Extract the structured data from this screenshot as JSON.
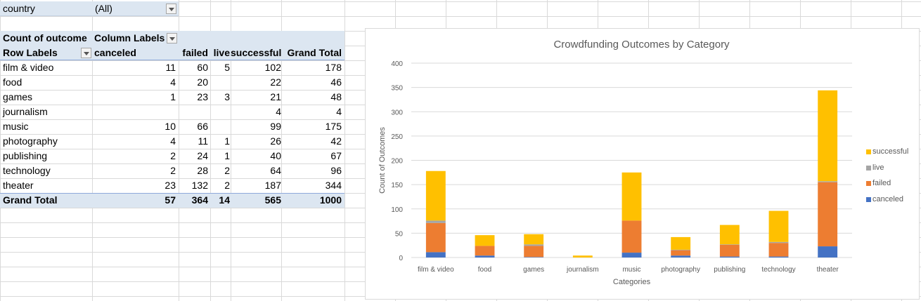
{
  "filter": {
    "label": "country",
    "value": "(All)"
  },
  "pivot": {
    "measure_label": "Count of outcome",
    "column_labels": "Column Labels",
    "row_labels": "Row Labels",
    "columns": [
      "canceled",
      "failed",
      "live",
      "successful",
      "Grand Total"
    ],
    "rows": [
      {
        "label": "film & video",
        "canceled": "11",
        "failed": "60",
        "live": "5",
        "successful": "102",
        "total": "178"
      },
      {
        "label": "food",
        "canceled": "4",
        "failed": "20",
        "live": "",
        "successful": "22",
        "total": "46"
      },
      {
        "label": "games",
        "canceled": "1",
        "failed": "23",
        "live": "3",
        "successful": "21",
        "total": "48"
      },
      {
        "label": "journalism",
        "canceled": "",
        "failed": "",
        "live": "",
        "successful": "4",
        "total": "4"
      },
      {
        "label": "music",
        "canceled": "10",
        "failed": "66",
        "live": "",
        "successful": "99",
        "total": "175"
      },
      {
        "label": "photography",
        "canceled": "4",
        "failed": "11",
        "live": "1",
        "successful": "26",
        "total": "42"
      },
      {
        "label": "publishing",
        "canceled": "2",
        "failed": "24",
        "live": "1",
        "successful": "40",
        "total": "67"
      },
      {
        "label": "technology",
        "canceled": "2",
        "failed": "28",
        "live": "2",
        "successful": "64",
        "total": "96"
      },
      {
        "label": "theater",
        "canceled": "23",
        "failed": "132",
        "live": "2",
        "successful": "187",
        "total": "344"
      }
    ],
    "grand_total": {
      "label": "Grand Total",
      "canceled": "57",
      "failed": "364",
      "live": "14",
      "successful": "565",
      "total": "1000"
    }
  },
  "chart_data": {
    "type": "bar",
    "stacked": true,
    "title": "Crowdfunding Outcomes by Category",
    "xlabel": "Categories",
    "ylabel": "Count of Outcomes",
    "ylim": [
      0,
      400
    ],
    "yticks": [
      0,
      50,
      100,
      150,
      200,
      250,
      300,
      350,
      400
    ],
    "grid": true,
    "legend": "right",
    "categories": [
      "film & video",
      "food",
      "games",
      "journalism",
      "music",
      "photography",
      "publishing",
      "technology",
      "theater"
    ],
    "series": [
      {
        "name": "canceled",
        "color": "#4472c4",
        "values": [
          11,
          4,
          1,
          0,
          10,
          4,
          2,
          2,
          23
        ]
      },
      {
        "name": "failed",
        "color": "#ed7d31",
        "values": [
          60,
          20,
          23,
          0,
          66,
          11,
          24,
          28,
          132
        ]
      },
      {
        "name": "live",
        "color": "#a5a5a5",
        "values": [
          5,
          0,
          3,
          0,
          0,
          1,
          1,
          2,
          2
        ]
      },
      {
        "name": "successful",
        "color": "#ffc000",
        "values": [
          102,
          22,
          21,
          4,
          99,
          26,
          40,
          64,
          187
        ]
      }
    ]
  }
}
